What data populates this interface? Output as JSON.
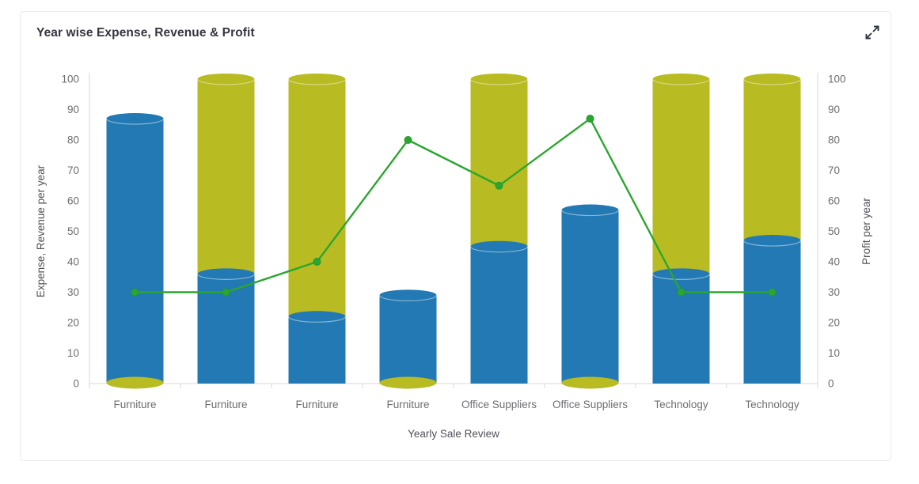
{
  "card": {
    "title": "Year wise Expense, Revenue & Profit",
    "expand_icon": "expand-arrows-icon"
  },
  "chart_data": {
    "type": "bar",
    "subtype": "stacked-column-with-line-overlay",
    "cylinder_style": true,
    "categories": [
      "Furniture",
      "Furniture",
      "Furniture",
      "Furniture",
      "Office Suppliers",
      "Office Suppliers",
      "Technology",
      "Technology"
    ],
    "series": [
      {
        "name": "Expense",
        "type": "stacked-column",
        "axis": "left",
        "color": "#2379b3",
        "values": [
          87,
          36,
          22,
          29,
          45,
          57,
          36,
          47
        ]
      },
      {
        "name": "Revenue",
        "type": "stacked-column",
        "axis": "left",
        "color": "#b9bb23",
        "values": [
          0,
          64,
          78,
          0,
          55,
          0,
          64,
          53
        ]
      },
      {
        "name": "Profit",
        "type": "line",
        "axis": "right",
        "color": "#2ba62f",
        "values": [
          30,
          30,
          40,
          80,
          65,
          87,
          30,
          30
        ]
      }
    ],
    "title": "Year wise Expense, Revenue & Profit",
    "xlabel": "Yearly Sale Review",
    "ylabel_left": "Expense, Revenue per year",
    "ylabel_right": "Profit per year",
    "ylim_left": [
      0,
      100
    ],
    "ylim_right": [
      0,
      100
    ],
    "yticks": [
      0,
      10,
      20,
      30,
      40,
      50,
      60,
      70,
      80,
      90,
      100
    ],
    "grid": "off",
    "legend": "none",
    "colors": {
      "axis_line": "#d9dadc",
      "tick_text": "#6e6e72",
      "axis_title_text": "#52525a",
      "marker_stroke": "#219a2e"
    }
  }
}
